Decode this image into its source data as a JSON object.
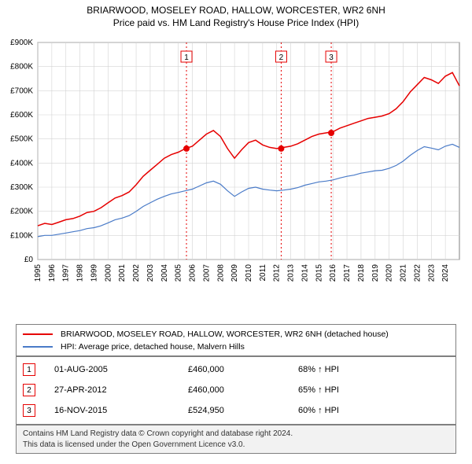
{
  "chart": {
    "type": "line",
    "title_line1": "BRIARWOOD, MOSELEY ROAD, HALLOW, WORCESTER, WR2 6NH",
    "title_line2": "Price paid vs. HM Land Registry's House Price Index (HPI)",
    "title_fontsize": 12,
    "background_color": "#ffffff",
    "plot_border_color": "#808080",
    "grid_color": "#d3d3d3",
    "x": {
      "min": 1995,
      "max": 2025,
      "ticks": [
        1995,
        1996,
        1997,
        1998,
        1999,
        2000,
        2001,
        2002,
        2003,
        2004,
        2005,
        2006,
        2007,
        2008,
        2009,
        2010,
        2011,
        2012,
        2013,
        2014,
        2015,
        2016,
        2017,
        2018,
        2019,
        2020,
        2021,
        2022,
        2023,
        2024
      ],
      "label_fontsize": 10,
      "label_rotation": -90
    },
    "y": {
      "min": 0,
      "max": 900000,
      "ticks": [
        0,
        100000,
        200000,
        300000,
        400000,
        500000,
        600000,
        700000,
        800000,
        900000
      ],
      "tick_labels": [
        "£0",
        "£100K",
        "£200K",
        "£300K",
        "£400K",
        "£500K",
        "£600K",
        "£700K",
        "£800K",
        "£900K"
      ],
      "label_fontsize": 10
    },
    "series": [
      {
        "name": "BRIARWOOD, MOSELEY ROAD, HALLOW, WORCESTER, WR2 6NH (detached house)",
        "color": "#e60000",
        "line_width": 1.5,
        "points": [
          [
            1995.0,
            140000
          ],
          [
            1995.5,
            150000
          ],
          [
            1996.0,
            145000
          ],
          [
            1996.5,
            155000
          ],
          [
            1997.0,
            165000
          ],
          [
            1997.5,
            170000
          ],
          [
            1998.0,
            180000
          ],
          [
            1998.5,
            195000
          ],
          [
            1999.0,
            200000
          ],
          [
            1999.5,
            215000
          ],
          [
            2000.0,
            235000
          ],
          [
            2000.5,
            255000
          ],
          [
            2001.0,
            265000
          ],
          [
            2001.5,
            280000
          ],
          [
            2002.0,
            310000
          ],
          [
            2002.5,
            345000
          ],
          [
            2003.0,
            370000
          ],
          [
            2003.5,
            395000
          ],
          [
            2004.0,
            420000
          ],
          [
            2004.5,
            435000
          ],
          [
            2005.0,
            445000
          ],
          [
            2005.5,
            460000
          ],
          [
            2006.0,
            470000
          ],
          [
            2006.5,
            495000
          ],
          [
            2007.0,
            520000
          ],
          [
            2007.5,
            535000
          ],
          [
            2008.0,
            510000
          ],
          [
            2008.5,
            460000
          ],
          [
            2009.0,
            420000
          ],
          [
            2009.5,
            455000
          ],
          [
            2010.0,
            485000
          ],
          [
            2010.5,
            495000
          ],
          [
            2011.0,
            475000
          ],
          [
            2011.5,
            465000
          ],
          [
            2012.0,
            460000
          ],
          [
            2012.5,
            465000
          ],
          [
            2013.0,
            470000
          ],
          [
            2013.5,
            480000
          ],
          [
            2014.0,
            495000
          ],
          [
            2014.5,
            510000
          ],
          [
            2015.0,
            520000
          ],
          [
            2015.5,
            525000
          ],
          [
            2016.0,
            530000
          ],
          [
            2016.5,
            545000
          ],
          [
            2017.0,
            555000
          ],
          [
            2017.5,
            565000
          ],
          [
            2018.0,
            575000
          ],
          [
            2018.5,
            585000
          ],
          [
            2019.0,
            590000
          ],
          [
            2019.5,
            595000
          ],
          [
            2020.0,
            605000
          ],
          [
            2020.5,
            625000
          ],
          [
            2021.0,
            655000
          ],
          [
            2021.5,
            695000
          ],
          [
            2022.0,
            725000
          ],
          [
            2022.5,
            755000
          ],
          [
            2023.0,
            745000
          ],
          [
            2023.5,
            730000
          ],
          [
            2024.0,
            760000
          ],
          [
            2024.5,
            775000
          ],
          [
            2025.0,
            720000
          ]
        ]
      },
      {
        "name": "HPI: Average price, detached house, Malvern Hills",
        "color": "#4a7bc8",
        "line_width": 1.2,
        "points": [
          [
            1995.0,
            95000
          ],
          [
            1995.5,
            100000
          ],
          [
            1996.0,
            100000
          ],
          [
            1996.5,
            105000
          ],
          [
            1997.0,
            110000
          ],
          [
            1997.5,
            115000
          ],
          [
            1998.0,
            120000
          ],
          [
            1998.5,
            128000
          ],
          [
            1999.0,
            132000
          ],
          [
            1999.5,
            140000
          ],
          [
            2000.0,
            152000
          ],
          [
            2000.5,
            165000
          ],
          [
            2001.0,
            172000
          ],
          [
            2001.5,
            182000
          ],
          [
            2002.0,
            200000
          ],
          [
            2002.5,
            220000
          ],
          [
            2003.0,
            235000
          ],
          [
            2003.5,
            250000
          ],
          [
            2004.0,
            262000
          ],
          [
            2004.5,
            272000
          ],
          [
            2005.0,
            278000
          ],
          [
            2005.5,
            285000
          ],
          [
            2006.0,
            292000
          ],
          [
            2006.5,
            305000
          ],
          [
            2007.0,
            318000
          ],
          [
            2007.5,
            325000
          ],
          [
            2008.0,
            312000
          ],
          [
            2008.5,
            285000
          ],
          [
            2009.0,
            262000
          ],
          [
            2009.5,
            280000
          ],
          [
            2010.0,
            295000
          ],
          [
            2010.5,
            300000
          ],
          [
            2011.0,
            292000
          ],
          [
            2011.5,
            288000
          ],
          [
            2012.0,
            285000
          ],
          [
            2012.5,
            288000
          ],
          [
            2013.0,
            292000
          ],
          [
            2013.5,
            298000
          ],
          [
            2014.0,
            308000
          ],
          [
            2014.5,
            315000
          ],
          [
            2015.0,
            322000
          ],
          [
            2015.5,
            325000
          ],
          [
            2016.0,
            330000
          ],
          [
            2016.5,
            338000
          ],
          [
            2017.0,
            345000
          ],
          [
            2017.5,
            350000
          ],
          [
            2018.0,
            358000
          ],
          [
            2018.5,
            363000
          ],
          [
            2019.0,
            368000
          ],
          [
            2019.5,
            370000
          ],
          [
            2020.0,
            378000
          ],
          [
            2020.5,
            390000
          ],
          [
            2021.0,
            408000
          ],
          [
            2021.5,
            432000
          ],
          [
            2022.0,
            452000
          ],
          [
            2022.5,
            468000
          ],
          [
            2023.0,
            462000
          ],
          [
            2023.5,
            455000
          ],
          [
            2024.0,
            470000
          ],
          [
            2024.5,
            478000
          ],
          [
            2025.0,
            465000
          ]
        ]
      }
    ],
    "sale_markers": [
      {
        "n": "1",
        "x": 2005.58,
        "y": 460000
      },
      {
        "n": "2",
        "x": 2012.32,
        "y": 460000
      },
      {
        "n": "3",
        "x": 2015.88,
        "y": 524950
      }
    ],
    "marker_color": "#e60000",
    "marker_radius": 4,
    "dotted_line_color": "#e60000",
    "dotted_line_dash": "2,3",
    "badge_border_color": "#e60000",
    "badge_fill": "#ffffff",
    "badge_size": 14,
    "badge_y_offset": 18
  },
  "legend": {
    "border_color": "#808080",
    "fontsize": 10.5,
    "items": [
      {
        "color": "#e60000",
        "label": "BRIARWOOD, MOSELEY ROAD, HALLOW, WORCESTER, WR2 6NH (detached house)"
      },
      {
        "color": "#4a7bc8",
        "label": "HPI: Average price, detached house, Malvern Hills"
      }
    ]
  },
  "sales": {
    "border_color": "#808080",
    "badge_border_color": "#e60000",
    "fontsize": 11,
    "rows": [
      {
        "n": "1",
        "date": "01-AUG-2005",
        "price": "£460,000",
        "pct": "68% ↑ HPI"
      },
      {
        "n": "2",
        "date": "27-APR-2012",
        "price": "£460,000",
        "pct": "65% ↑ HPI"
      },
      {
        "n": "3",
        "date": "16-NOV-2015",
        "price": "£524,950",
        "pct": "60% ↑ HPI"
      }
    ]
  },
  "footer": {
    "line1": "Contains HM Land Registry data © Crown copyright and database right 2024.",
    "line2": "This data is licensed under the Open Government Licence v3.0.",
    "bg_color": "#f2f2f2",
    "border_color": "#808080",
    "fontsize": 10
  }
}
